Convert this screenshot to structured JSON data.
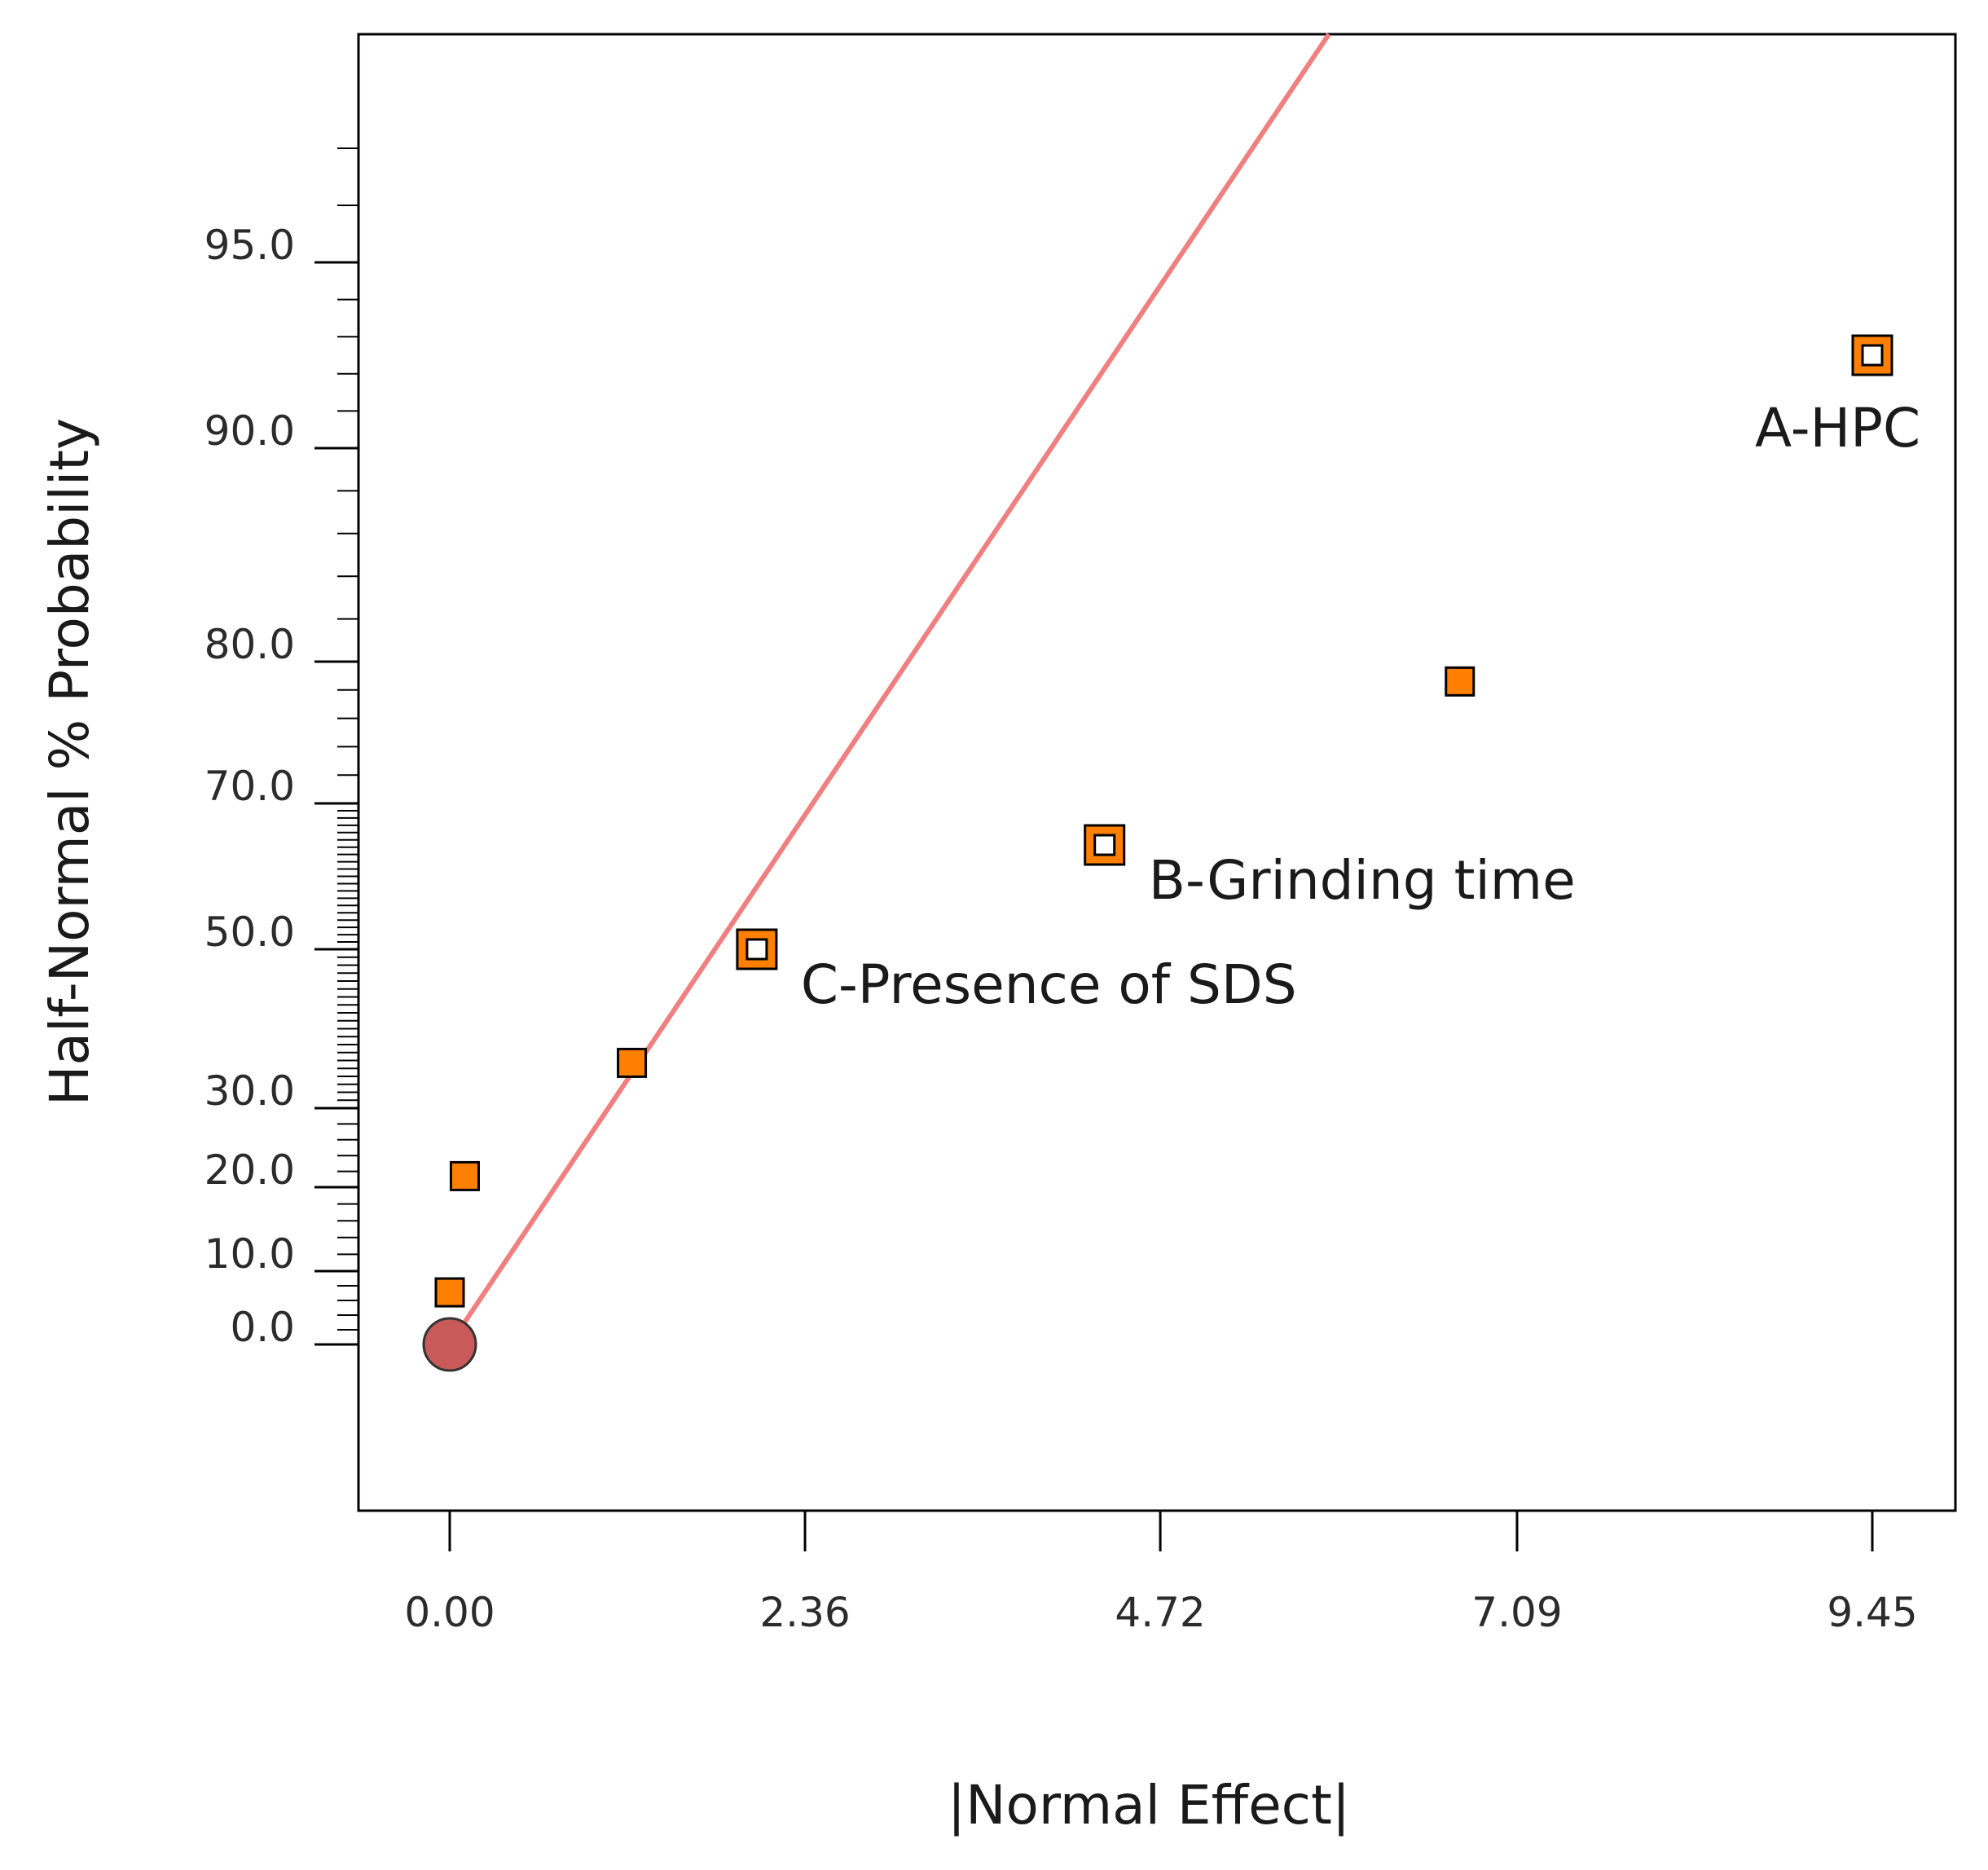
{
  "chart_data": {
    "type": "scatter",
    "title": "",
    "xlabel": "|Normal Effect|",
    "ylabel": "Half-Normal % Probability",
    "x_ticks": [
      "0.00",
      "2.36",
      "4.72",
      "7.09",
      "9.45"
    ],
    "x_tick_values": [
      0.0,
      2.36,
      4.72,
      7.09,
      9.45
    ],
    "y_ticks": [
      "0.0",
      "10.0",
      "20.0",
      "30.0",
      "50.0",
      "70.0",
      "80.0",
      "90.0",
      "95.0"
    ],
    "y_tick_values": [
      0,
      10,
      20,
      30,
      50,
      70,
      80,
      90,
      95
    ],
    "xlim": [
      -0.6,
      10.1
    ],
    "grid": false,
    "points": [
      {
        "x": 9.45,
        "y": 92.5,
        "label": "A-HPC",
        "kind": "labeled"
      },
      {
        "x": 6.71,
        "y": 78.6,
        "label": "",
        "kind": "term"
      },
      {
        "x": 4.35,
        "y": 64.3,
        "label": "B-Grinding time",
        "kind": "labeled"
      },
      {
        "x": 2.04,
        "y": 50.0,
        "label": "C-Presence of SDS",
        "kind": "labeled"
      },
      {
        "x": 1.21,
        "y": 35.7,
        "label": "",
        "kind": "term"
      },
      {
        "x": 0.1,
        "y": 21.4,
        "label": "",
        "kind": "term"
      },
      {
        "x": 0.0,
        "y": 7.1,
        "label": "",
        "kind": "term"
      },
      {
        "x": 0.0,
        "y": 0.0,
        "label": "",
        "kind": "error"
      }
    ],
    "reference_line": {
      "from": [
        0.0,
        0.0
      ],
      "to": [
        5.84,
        99.0
      ]
    },
    "colors": {
      "marker_fill": "#ff8000",
      "marker_edge": "#000000",
      "error_fill": "#c85a5a",
      "line": "#f08080",
      "axis": "#000000"
    }
  }
}
